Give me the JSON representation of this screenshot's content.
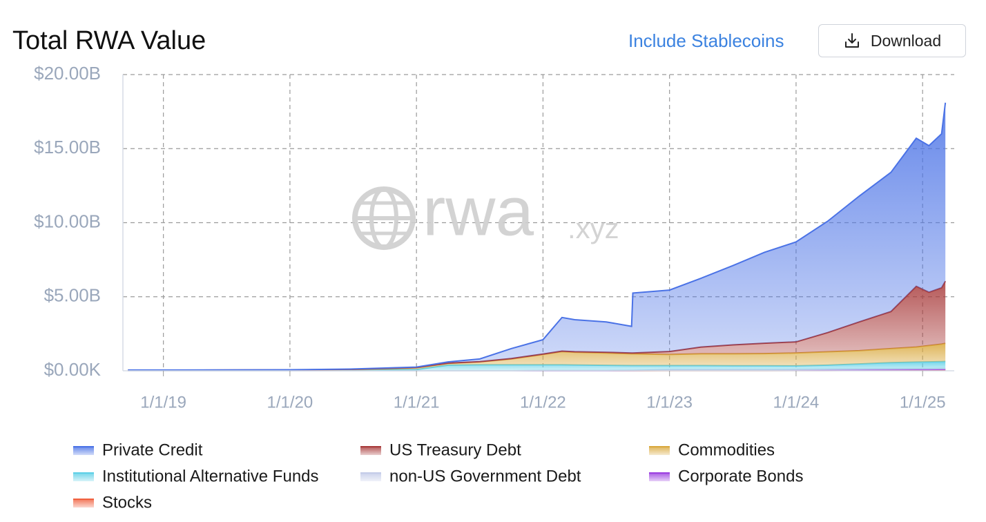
{
  "chart_data": {
    "type": "stacked-area",
    "title": "Total RWA Value",
    "controls": {
      "toggle": "Include Stablecoins",
      "button": "Download"
    },
    "watermark": {
      "main": "rwa",
      "suffix": ".xyz"
    },
    "x": [
      2018.72,
      2019.0,
      2019.5,
      2020.0,
      2020.5,
      2021.0,
      2021.25,
      2021.5,
      2021.75,
      2022.0,
      2022.15,
      2022.25,
      2022.5,
      2022.7,
      2022.71,
      2023.0,
      2023.25,
      2023.5,
      2023.75,
      2024.0,
      2024.25,
      2024.5,
      2024.75,
      2024.95,
      2025.05,
      2025.15,
      2025.18
    ],
    "xlim": [
      2018.68,
      2025.25
    ],
    "xticks": [
      {
        "value": 2019,
        "label": "1/1/19"
      },
      {
        "value": 2020,
        "label": "1/1/20"
      },
      {
        "value": 2021,
        "label": "1/1/21"
      },
      {
        "value": 2022,
        "label": "1/1/22"
      },
      {
        "value": 2023,
        "label": "1/1/23"
      },
      {
        "value": 2024,
        "label": "1/1/24"
      },
      {
        "value": 2025,
        "label": "1/1/25"
      }
    ],
    "ylim": [
      0,
      20
    ],
    "yticks": [
      {
        "value": 0,
        "label": "$0.00K"
      },
      {
        "value": 5,
        "label": "$5.00B"
      },
      {
        "value": 10,
        "label": "$10.00B"
      },
      {
        "value": 15,
        "label": "$15.00B"
      },
      {
        "value": 20,
        "label": "$20.00B"
      }
    ],
    "grid": true,
    "legend": "bottom",
    "series": [
      {
        "name": "Private Credit",
        "color": "#4a72e6",
        "values": [
          0.01,
          0.01,
          0.01,
          0.01,
          0.02,
          0.03,
          0.08,
          0.18,
          0.67,
          0.97,
          2.27,
          2.16,
          2.05,
          1.8,
          4.05,
          4.15,
          4.65,
          5.35,
          6.14,
          6.75,
          7.52,
          8.5,
          9.4,
          10.0,
          9.9,
          10.4,
          12.05
        ]
      },
      {
        "name": "US Treasury Debt",
        "color": "#a83a3a",
        "values": [
          0,
          0,
          0.01,
          0.01,
          0.01,
          0.02,
          0.02,
          0.02,
          0.03,
          0.03,
          0.03,
          0.04,
          0.05,
          0.05,
          0.05,
          0.2,
          0.45,
          0.6,
          0.7,
          0.75,
          1.3,
          1.94,
          2.5,
          4.1,
          3.6,
          3.8,
          4.2
        ]
      },
      {
        "name": "Commodities",
        "color": "#d9a83c",
        "values": [
          0.01,
          0.01,
          0.01,
          0.02,
          0.04,
          0.12,
          0.12,
          0.2,
          0.4,
          0.7,
          0.9,
          0.86,
          0.83,
          0.8,
          0.8,
          0.75,
          0.8,
          0.81,
          0.82,
          0.87,
          0.9,
          0.9,
          0.95,
          1.01,
          1.1,
          1.18,
          1.22
        ]
      },
      {
        "name": "Institutional Alternative Funds",
        "color": "#5ccfe6",
        "values": [
          0.03,
          0.03,
          0.03,
          0.03,
          0.05,
          0.08,
          0.38,
          0.4,
          0.4,
          0.38,
          0.38,
          0.37,
          0.35,
          0.32,
          0.32,
          0.28,
          0.28,
          0.27,
          0.27,
          0.25,
          0.28,
          0.35,
          0.42,
          0.45,
          0.46,
          0.47,
          0.48
        ]
      },
      {
        "name": "non-US Government Debt",
        "color": "#c3cbe8",
        "values": [
          0,
          0,
          0,
          0,
          0,
          0,
          0,
          0,
          0,
          0.02,
          0.02,
          0.02,
          0.02,
          0.02,
          0.02,
          0.03,
          0.03,
          0.03,
          0.03,
          0.03,
          0.04,
          0.04,
          0.05,
          0.05,
          0.05,
          0.05,
          0.05
        ]
      },
      {
        "name": "Corporate Bonds",
        "color": "#9b3fe0",
        "values": [
          0,
          0,
          0,
          0,
          0,
          0,
          0,
          0,
          0,
          0,
          0,
          0,
          0,
          0.01,
          0.01,
          0.03,
          0.03,
          0.03,
          0.03,
          0.03,
          0.04,
          0.04,
          0.05,
          0.05,
          0.05,
          0.05,
          0.05
        ]
      },
      {
        "name": "Stocks",
        "color": "#f0603e",
        "values": [
          0,
          0,
          0,
          0,
          0,
          0,
          0,
          0,
          0,
          0,
          0,
          0,
          0,
          0,
          0,
          0.01,
          0.01,
          0.01,
          0.01,
          0.02,
          0.02,
          0.03,
          0.03,
          0.04,
          0.04,
          0.05,
          0.05
        ]
      }
    ]
  }
}
